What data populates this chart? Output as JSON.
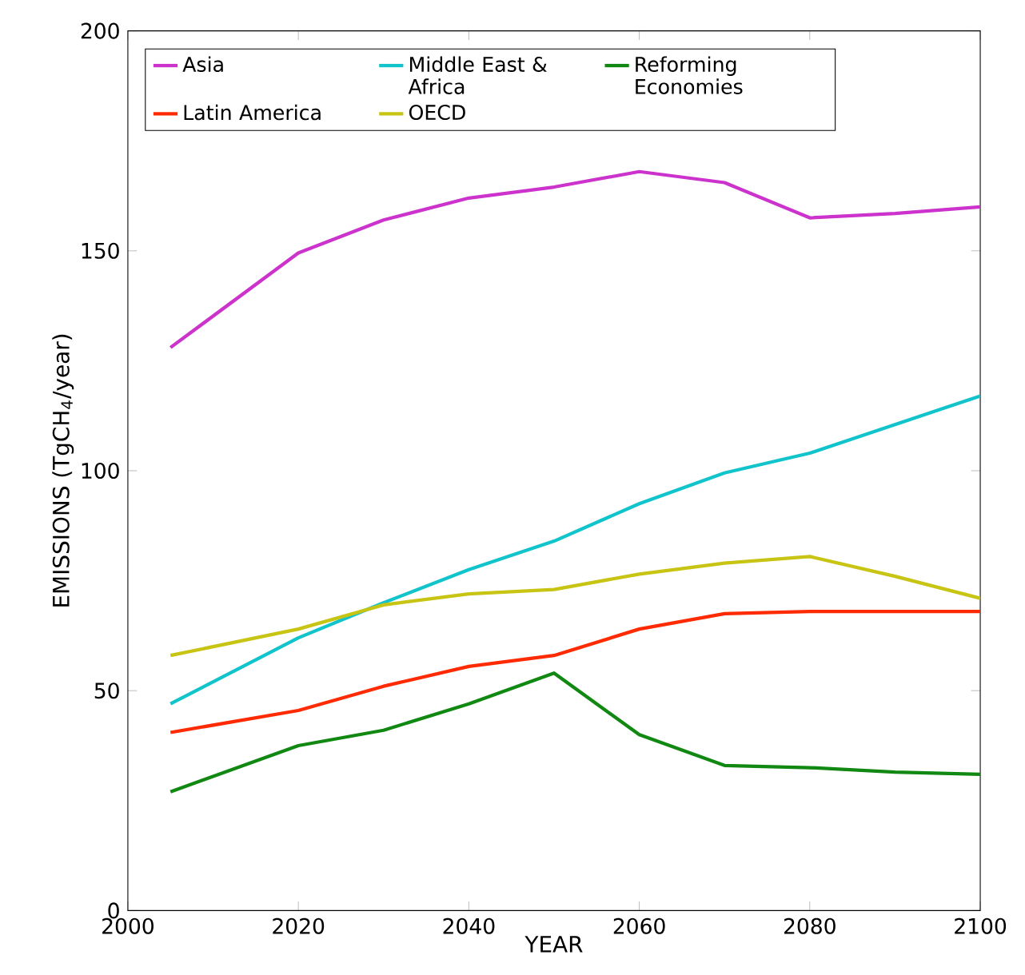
{
  "chart_data": {
    "type": "line",
    "xlabel": "YEAR",
    "ylabel": "EMISSIONS (TgCH$_{4}$/year)",
    "x": [
      2005,
      2020,
      2030,
      2040,
      2050,
      2060,
      2070,
      2080,
      2090,
      2100
    ],
    "series": [
      {
        "name": "Asia",
        "color": "#cc33cc",
        "values": [
          128,
          149.5,
          157,
          162,
          164.5,
          168,
          165.5,
          157.5,
          158.5,
          160
        ]
      },
      {
        "name": "Middle East & Africa",
        "color": "#11c4cc",
        "values": [
          47,
          62,
          70,
          77.5,
          84,
          92.5,
          99.5,
          104,
          110.5,
          117
        ]
      },
      {
        "name": "Reforming Economies",
        "color": "#118811",
        "values": [
          27,
          37.5,
          41,
          47,
          54,
          40,
          33,
          32.5,
          31.5,
          31
        ]
      },
      {
        "name": "Latin America",
        "color": "#ff2a00",
        "values": [
          40.5,
          45.5,
          51,
          55.5,
          58,
          64,
          67.5,
          68,
          68,
          68
        ]
      },
      {
        "name": "OECD",
        "color": "#c8c414",
        "values": [
          58,
          64,
          69.5,
          72,
          73,
          76.5,
          79,
          80.5,
          76,
          71
        ]
      }
    ],
    "xlim": [
      2000,
      2100
    ],
    "ylim": [
      0,
      200
    ],
    "xticks": [
      2000,
      2020,
      2040,
      2060,
      2080,
      2100
    ],
    "yticks": [
      0,
      50,
      100,
      150,
      200
    ],
    "legend": "top left",
    "grid": false,
    "marker": "none",
    "line_style": "solid"
  }
}
